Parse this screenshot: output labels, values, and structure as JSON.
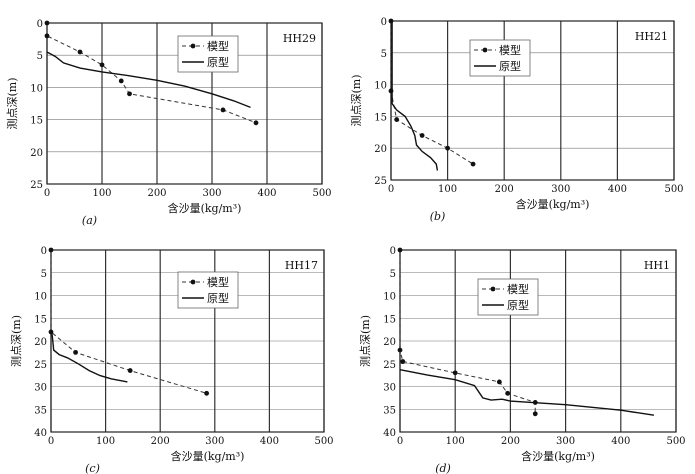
{
  "chart_data": [
    {
      "type": "line",
      "station": "HH29",
      "caption": "(a)",
      "xlabel": "含沙量(kg/m³)",
      "ylabel": "测点深(m)",
      "xlim": [
        0,
        500
      ],
      "ylim": [
        0,
        25
      ],
      "xticks": [
        0,
        100,
        200,
        300,
        400,
        500
      ],
      "yticks": [
        0,
        5,
        10,
        15,
        20,
        25
      ],
      "series": [
        {
          "name": "模型",
          "style": "dashed-marker",
          "points": [
            [
              0,
              0
            ],
            [
              0,
              2
            ],
            [
              60,
              4.5
            ],
            [
              100,
              6.5
            ],
            [
              135,
              9
            ],
            [
              150,
              11
            ],
            [
              320,
              13.5
            ],
            [
              380,
              15.5
            ]
          ]
        },
        {
          "name": "原型",
          "style": "solid",
          "points": [
            [
              0,
              4.5
            ],
            [
              15,
              5.2
            ],
            [
              30,
              6.2
            ],
            [
              60,
              7
            ],
            [
              100,
              7.6
            ],
            [
              150,
              8.2
            ],
            [
              200,
              8.9
            ],
            [
              250,
              9.8
            ],
            [
              300,
              11
            ],
            [
              340,
              12.1
            ],
            [
              370,
              13.1
            ]
          ]
        }
      ]
    },
    {
      "type": "line",
      "station": "HH21",
      "caption": "(b)",
      "xlabel": "含沙量(kg/m³)",
      "ylabel": "测点深(m)",
      "xlim": [
        0,
        500
      ],
      "ylim": [
        0,
        25
      ],
      "xticks": [
        0,
        100,
        200,
        300,
        400,
        500
      ],
      "yticks": [
        0,
        5,
        10,
        15,
        20,
        25
      ],
      "series": [
        {
          "name": "模型",
          "style": "dashed-marker",
          "points": [
            [
              0,
              0
            ],
            [
              0,
              11
            ],
            [
              10,
              15.5
            ],
            [
              55,
              18
            ],
            [
              100,
              20
            ],
            [
              145,
              22.5
            ]
          ]
        },
        {
          "name": "原型",
          "style": "solid",
          "points": [
            [
              2,
              0
            ],
            [
              2,
              13
            ],
            [
              10,
              14
            ],
            [
              25,
              15
            ],
            [
              35,
              16.5
            ],
            [
              42,
              18
            ],
            [
              45,
              19.5
            ],
            [
              55,
              20.5
            ],
            [
              70,
              21.5
            ],
            [
              80,
              22.5
            ],
            [
              82,
              23.5
            ]
          ]
        }
      ]
    },
    {
      "type": "line",
      "station": "HH17",
      "caption": "(c)",
      "xlabel": "含沙量(kg/m³)",
      "ylabel": "测点深(m)",
      "xlim": [
        0,
        500
      ],
      "ylim": [
        0,
        40
      ],
      "xticks": [
        0,
        100,
        200,
        300,
        400,
        500
      ],
      "yticks": [
        0,
        5,
        10,
        15,
        20,
        25,
        30,
        35,
        40
      ],
      "series": [
        {
          "name": "模型",
          "style": "dashed-marker",
          "points": [
            [
              0,
              0
            ],
            [
              0,
              18
            ],
            [
              45,
              22.5
            ],
            [
              145,
              26.5
            ],
            [
              285,
              31.5
            ]
          ]
        },
        {
          "name": "原型",
          "style": "solid",
          "points": [
            [
              2,
              18.5
            ],
            [
              5,
              22
            ],
            [
              15,
              23
            ],
            [
              30,
              23.7
            ],
            [
              50,
              25
            ],
            [
              70,
              26.5
            ],
            [
              90,
              27.6
            ],
            [
              110,
              28.3
            ],
            [
              140,
              29
            ]
          ]
        }
      ]
    },
    {
      "type": "line",
      "station": "HH1",
      "caption": "(d)",
      "xlabel": "含沙量(kg/m³)",
      "ylabel": "测点深(m)",
      "xlim": [
        0,
        500
      ],
      "ylim": [
        0,
        40
      ],
      "xticks": [
        0,
        100,
        200,
        300,
        400,
        500
      ],
      "yticks": [
        0,
        5,
        10,
        15,
        20,
        25,
        30,
        35,
        40
      ],
      "series": [
        {
          "name": "模型",
          "style": "dashed-marker",
          "points": [
            [
              0,
              0
            ],
            [
              0,
              22
            ],
            [
              5,
              24.5
            ],
            [
              100,
              27
            ],
            [
              180,
              29
            ],
            [
              195,
              31.5
            ],
            [
              245,
              33.5
            ],
            [
              245,
              36
            ]
          ]
        },
        {
          "name": "原型",
          "style": "solid",
          "points": [
            [
              0,
              26.3
            ],
            [
              50,
              27.5
            ],
            [
              100,
              28.5
            ],
            [
              135,
              29.8
            ],
            [
              150,
              32.5
            ],
            [
              165,
              33
            ],
            [
              185,
              32.8
            ],
            [
              200,
              33.2
            ],
            [
              300,
              34
            ],
            [
              400,
              35.2
            ],
            [
              460,
              36.3
            ]
          ]
        }
      ]
    }
  ]
}
